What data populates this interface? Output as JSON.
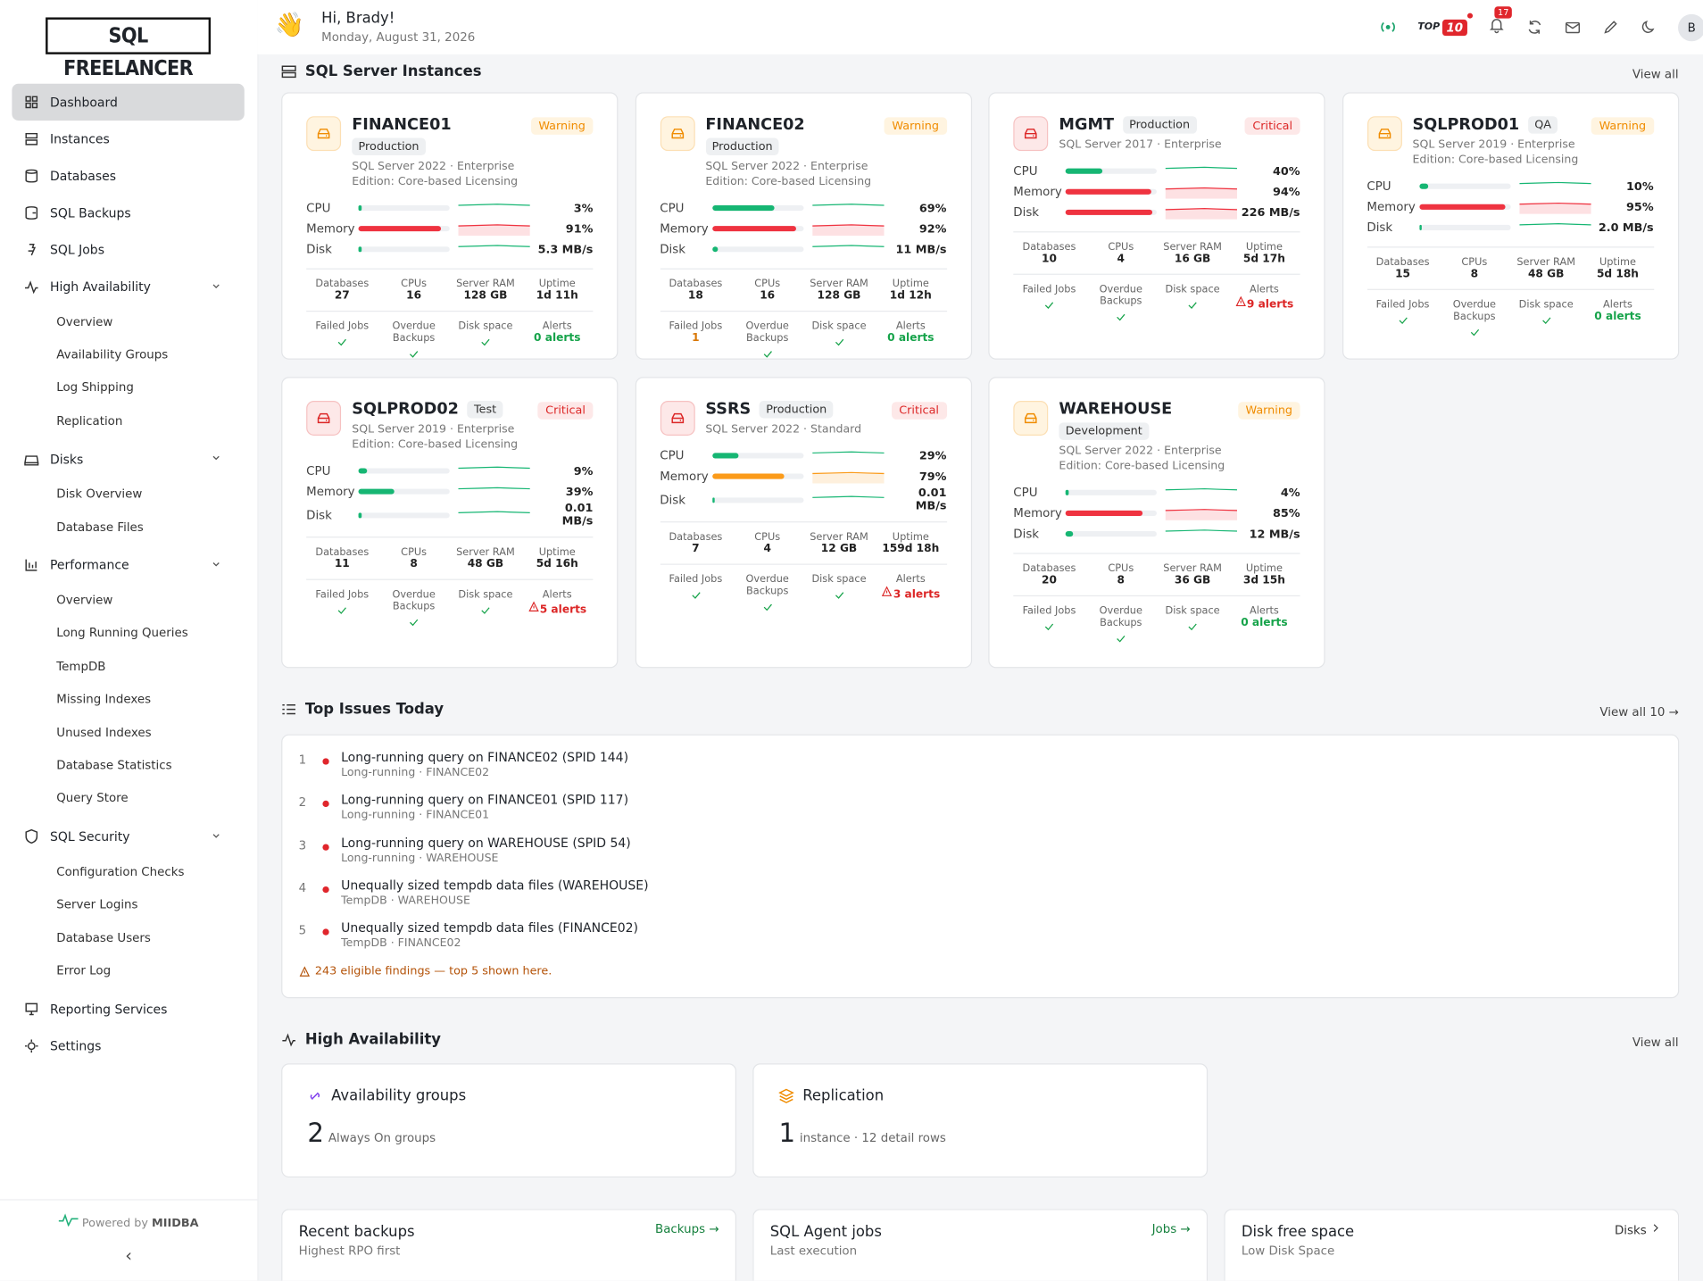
{
  "sidebar": {
    "logo": "SQL FREELANCER",
    "nav": [
      {
        "label": "Dashboard",
        "active": true
      },
      {
        "label": "Instances"
      },
      {
        "label": "Databases"
      },
      {
        "label": "SQL Backups"
      },
      {
        "label": "SQL Jobs"
      },
      {
        "label": "High Availability",
        "children": [
          "Overview",
          "Availability Groups",
          "Log Shipping",
          "Replication"
        ]
      },
      {
        "label": "Disks",
        "children": [
          "Disk Overview",
          "Database Files"
        ]
      },
      {
        "label": "Performance",
        "children": [
          "Overview",
          "Long Running Queries",
          "TempDB",
          "Missing Indexes",
          "Unused Indexes",
          "Database Statistics",
          "Query Store"
        ]
      },
      {
        "label": "SQL Security",
        "children": [
          "Configuration Checks",
          "Server Logins",
          "Database Users",
          "Error Log"
        ]
      },
      {
        "label": "Reporting Services"
      },
      {
        "label": "Settings"
      }
    ],
    "powered_by": "Powered by",
    "brand": "MIIDBA"
  },
  "header": {
    "greeting": "Hi, Brady!",
    "date": "Monday, August 31, 2026",
    "top_label": "TOP",
    "top_count": "10",
    "notifications": "17",
    "avatar": "B"
  },
  "instances": {
    "title": "SQL Server Instances",
    "view_all": "View all",
    "metric_labels": [
      "CPU",
      "Memory",
      "Disk"
    ],
    "stat_labels": [
      "Databases",
      "CPUs",
      "Server RAM",
      "Uptime"
    ],
    "health_labels": [
      "Failed Jobs",
      "Overdue Backups",
      "Disk space",
      "Alerts"
    ],
    "cards": [
      {
        "name": "FINANCE01",
        "env": "Production",
        "status": "Warning",
        "version": "SQL Server 2022 · Enterprise",
        "edition": "Edition: Core-based Licensing",
        "metrics": [
          {
            "value": 3,
            "text": "3%"
          },
          {
            "value": 91,
            "text": "91%"
          },
          {
            "value": 3,
            "text": "5.3 MB/s"
          }
        ],
        "stats": [
          "27",
          "16",
          "128 GB",
          "1d 11h"
        ],
        "alerts": "0 alerts"
      },
      {
        "name": "FINANCE02",
        "env": "Production",
        "status": "Warning",
        "version": "SQL Server 2022 · Enterprise",
        "edition": "Edition: Core-based Licensing",
        "metrics": [
          {
            "value": 69,
            "text": "69%"
          },
          {
            "value": 92,
            "text": "92%"
          },
          {
            "value": 6,
            "text": "11 MB/s"
          }
        ],
        "stats": [
          "18",
          "16",
          "128 GB",
          "1d 12h"
        ],
        "failed_jobs": "1",
        "alerts": "0 alerts"
      },
      {
        "name": "MGMT",
        "env": "Production",
        "status": "Critical",
        "version": "SQL Server 2017 · Enterprise",
        "metrics": [
          {
            "value": 40,
            "text": "40%"
          },
          {
            "value": 94,
            "text": "94%"
          },
          {
            "value": 95,
            "text": "226 MB/s"
          }
        ],
        "stats": [
          "10",
          "4",
          "16 GB",
          "5d 17h"
        ],
        "alerts": "9 alerts"
      },
      {
        "name": "SQLPROD01",
        "env": "QA",
        "status": "Warning",
        "version": "SQL Server 2019 · Enterprise",
        "edition": "Edition: Core-based Licensing",
        "metrics": [
          {
            "value": 10,
            "text": "10%"
          },
          {
            "value": 95,
            "text": "95%"
          },
          {
            "value": 1,
            "text": "2.0 MB/s"
          }
        ],
        "stats": [
          "15",
          "8",
          "48 GB",
          "5d 18h"
        ],
        "alerts": "0 alerts"
      },
      {
        "name": "SQLPROD02",
        "env": "Test",
        "status": "Critical",
        "version": "SQL Server 2019 · Enterprise",
        "edition": "Edition: Core-based Licensing",
        "metrics": [
          {
            "value": 9,
            "text": "9%"
          },
          {
            "value": 39,
            "text": "39%"
          },
          {
            "value": 0,
            "text": "0.01 MB/s"
          }
        ],
        "stats": [
          "11",
          "8",
          "48 GB",
          "5d 16h"
        ],
        "alerts": "5 alerts"
      },
      {
        "name": "SSRS",
        "env": "Production",
        "status": "Critical",
        "version": "SQL Server 2022 · Standard",
        "metrics": [
          {
            "value": 29,
            "text": "29%"
          },
          {
            "value": 79,
            "text": "79%"
          },
          {
            "value": 0,
            "text": "0.01 MB/s"
          }
        ],
        "stats": [
          "7",
          "4",
          "12 GB",
          "159d 18h"
        ],
        "alerts": "3 alerts"
      },
      {
        "name": "WAREHOUSE",
        "env": "Development",
        "status": "Warning",
        "version": "SQL Server 2022 · Enterprise",
        "edition": "Edition: Core-based Licensing",
        "metrics": [
          {
            "value": 4,
            "text": "4%"
          },
          {
            "value": 85,
            "text": "85%"
          },
          {
            "value": 8,
            "text": "12 MB/s"
          }
        ],
        "stats": [
          "20",
          "8",
          "36 GB",
          "3d 15h"
        ],
        "alerts": "0 alerts"
      }
    ]
  },
  "issues": {
    "title": "Top Issues Today",
    "view_all": "View all 10 →",
    "items": [
      {
        "rank": 1,
        "title": "Long-running query on FINANCE02 (SPID 144)",
        "sub": "Long-running · FINANCE02"
      },
      {
        "rank": 2,
        "title": "Long-running query on FINANCE01 (SPID 117)",
        "sub": "Long-running · FINANCE01"
      },
      {
        "rank": 3,
        "title": "Long-running query on WAREHOUSE (SPID 54)",
        "sub": "Long-running · WAREHOUSE"
      },
      {
        "rank": 4,
        "title": "Unequally sized tempdb data files (WAREHOUSE)",
        "sub": "TempDB · WAREHOUSE"
      },
      {
        "rank": 5,
        "title": "Unequally sized tempdb data files (FINANCE02)",
        "sub": "TempDB · FINANCE02"
      }
    ],
    "note": "243 eligible findings — top 5 shown here."
  },
  "ha": {
    "title": "High Availability",
    "view_all": "View all",
    "cards": [
      {
        "title": "Availability groups",
        "count": 2,
        "text": "Always On groups"
      },
      {
        "title": "Replication",
        "count": 1,
        "text": "instance · 12 detail rows"
      }
    ]
  },
  "panels": [
    {
      "title": "Recent backups",
      "sub": "Highest RPO first",
      "link": "Backups →"
    },
    {
      "title": "SQL Agent jobs",
      "sub": "Last execution",
      "link": "Jobs →"
    },
    {
      "title": "Disk free space",
      "sub": "Low Disk Space",
      "link": "Disks"
    }
  ]
}
